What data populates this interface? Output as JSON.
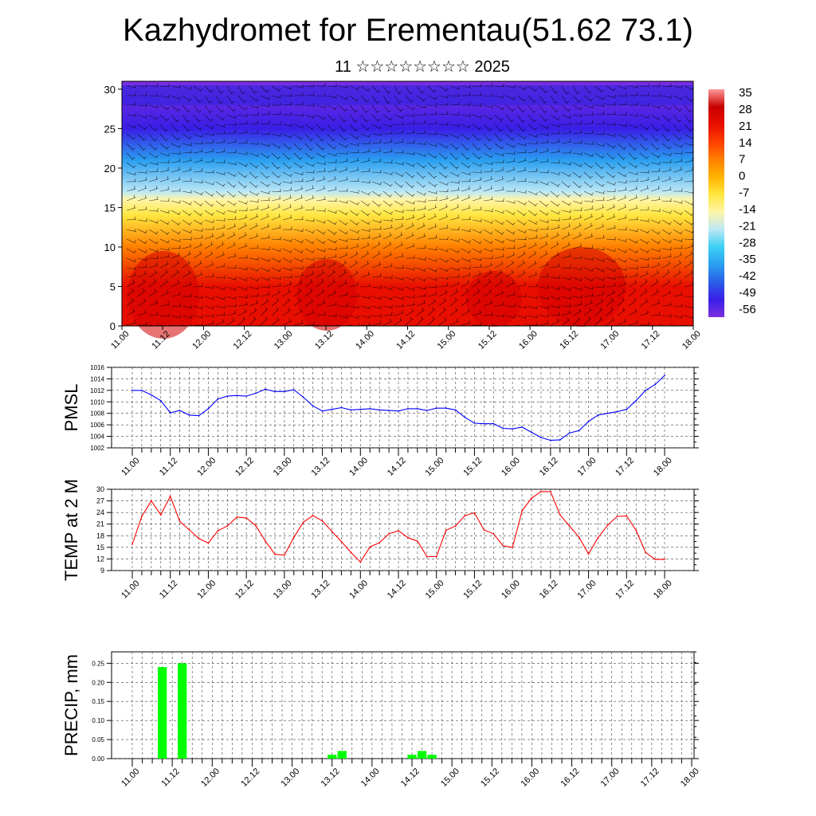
{
  "page": {
    "title": "Kazhydromet for Erementau(51.62 73.1)",
    "subtitle": "11 ☆☆☆☆☆☆☆☆ 2025"
  },
  "chart_data": [
    {
      "id": "cross-section",
      "type": "heatmap",
      "ylim": [
        0,
        31
      ],
      "yticks": [
        "0",
        "5",
        "10",
        "15",
        "20",
        "25",
        "30"
      ],
      "xticks": [
        "11.00",
        "11.12",
        "12.00",
        "12.12",
        "13.00",
        "13.12",
        "14.00",
        "14.12",
        "15.00",
        "15.12",
        "16.00",
        "16.12",
        "17.00",
        "17.12",
        "18.00"
      ],
      "colorbar_labels": [
        "35",
        "28",
        "21",
        "14",
        "7",
        "0",
        "-7",
        "-14",
        "-21",
        "-28",
        "-35",
        "-42",
        "-49",
        "-56"
      ],
      "colors": {
        "bands": [
          {
            "level": 0,
            "temp": 28
          },
          {
            "level": 5,
            "temp": 24
          },
          {
            "level": 10,
            "temp": 10
          },
          {
            "level": 14,
            "temp": -5
          },
          {
            "level": 16,
            "temp": -14
          },
          {
            "level": 17,
            "temp": -22
          },
          {
            "level": 21,
            "temp": -35
          },
          {
            "level": 25,
            "temp": -50
          },
          {
            "level": 31,
            "temp": -60
          }
        ],
        "scale": [
          "#7b2fe0",
          "#3a1ee6",
          "#2a5ee8",
          "#2a9ff0",
          "#3cd0f5",
          "#bde8f5",
          "#fff5a8",
          "#ffe640",
          "#ffb300",
          "#ff7f00",
          "#ff4000",
          "#e80e00",
          "#c80000",
          "#ff9a9a"
        ]
      }
    },
    {
      "id": "pmsl",
      "type": "line",
      "ylabel": "PMSL",
      "ylim": [
        1002,
        1016
      ],
      "yticks": [
        "1002",
        "1004",
        "1006",
        "1008",
        "1010",
        "1012",
        "1014",
        "1016"
      ],
      "xticks": [
        "11.00",
        "11.12",
        "12.00",
        "12.12",
        "13.00",
        "13.12",
        "14.00",
        "14.12",
        "15.00",
        "15.12",
        "16.00",
        "16.12",
        "17.00",
        "17.12",
        "18.00"
      ],
      "x": [
        0,
        3,
        6,
        9,
        12,
        15,
        18,
        21,
        24,
        27,
        30,
        33,
        36,
        39,
        42,
        45,
        48,
        51,
        54,
        57,
        60,
        63,
        66,
        69,
        72,
        75,
        78,
        81,
        84,
        87,
        90,
        93,
        96,
        99,
        102,
        105,
        108,
        111,
        114,
        117,
        120,
        123,
        126,
        129,
        132,
        135,
        138,
        141,
        144,
        147,
        150,
        153,
        156,
        159,
        162,
        165,
        168
      ],
      "values": [
        1012.0,
        1012.0,
        1011.2,
        1010.2,
        1008.1,
        1008.5,
        1007.7,
        1007.6,
        1008.8,
        1010.5,
        1011.0,
        1011.1,
        1011.0,
        1011.5,
        1012.2,
        1011.8,
        1011.8,
        1012.1,
        1010.8,
        1009.3,
        1008.4,
        1008.7,
        1009.0,
        1008.6,
        1008.7,
        1008.8,
        1008.6,
        1008.5,
        1008.4,
        1008.8,
        1008.8,
        1008.5,
        1008.9,
        1008.9,
        1008.6,
        1007.3,
        1006.3,
        1006.2,
        1006.2,
        1005.4,
        1005.3,
        1005.6,
        1004.7,
        1003.8,
        1003.3,
        1003.4,
        1004.6,
        1005.0,
        1006.6,
        1007.7,
        1008.0,
        1008.3,
        1008.7,
        1010.2,
        1012.0,
        1013.0,
        1014.6
      ],
      "colors": {
        "line": "#0000ff"
      }
    },
    {
      "id": "temp2m",
      "type": "line",
      "ylabel": "TEMP at 2 M",
      "ylim": [
        9,
        30
      ],
      "yticks": [
        "9",
        "12",
        "15",
        "18",
        "21",
        "24",
        "27",
        "30"
      ],
      "xticks": [
        "11.00",
        "11.12",
        "12.00",
        "12.12",
        "13.00",
        "13.12",
        "14.00",
        "14.12",
        "15.00",
        "15.12",
        "16.00",
        "16.12",
        "17.00",
        "17.12",
        "18.00"
      ],
      "x": [
        0,
        3,
        6,
        9,
        12,
        15,
        18,
        21,
        24,
        27,
        30,
        33,
        36,
        39,
        42,
        45,
        48,
        51,
        54,
        57,
        60,
        63,
        66,
        69,
        72,
        75,
        78,
        81,
        84,
        87,
        90,
        93,
        96,
        99,
        102,
        105,
        108,
        111,
        114,
        117,
        120,
        123,
        126,
        129,
        132,
        135,
        138,
        141,
        144,
        147,
        150,
        153,
        156,
        159,
        162,
        165,
        168
      ],
      "values": [
        15.8,
        23.0,
        27.0,
        23.4,
        28.2,
        21.7,
        19.5,
        17.3,
        16.1,
        19.3,
        20.5,
        22.8,
        22.6,
        20.6,
        16.6,
        13.2,
        13.0,
        17.6,
        21.5,
        23.2,
        21.8,
        19.1,
        16.5,
        13.7,
        11.2,
        15.1,
        16.2,
        18.5,
        19.3,
        17.5,
        16.6,
        12.6,
        12.6,
        19.4,
        20.5,
        23.2,
        23.9,
        19.5,
        18.5,
        15.4,
        15.0,
        24.4,
        27.7,
        29.4,
        29.4,
        23.4,
        20.5,
        17.6,
        13.3,
        17.5,
        20.7,
        23.0,
        23.1,
        19.4,
        13.7,
        11.9,
        11.9
      ],
      "colors": {
        "line": "#ff0000"
      }
    },
    {
      "id": "precip",
      "type": "bar",
      "ylabel": "PRECIP, mm",
      "ylim": [
        0,
        0.28
      ],
      "yticks": [
        "0.00",
        "0.05",
        "0.10",
        "0.15",
        "0.20",
        "0.25"
      ],
      "xticks": [
        "11.00",
        "11.12",
        "12.00",
        "12.12",
        "13.00",
        "13.12",
        "14.00",
        "14.12",
        "15.00",
        "15.12",
        "16.00",
        "16.12",
        "17.00",
        "17.12",
        "18.00"
      ],
      "x": [
        9,
        15,
        60,
        63,
        84,
        87,
        90
      ],
      "values": [
        0.24,
        0.25,
        0.01,
        0.02,
        0.01,
        0.02,
        0.01
      ],
      "colors": {
        "bar": "#00ff00"
      }
    }
  ]
}
